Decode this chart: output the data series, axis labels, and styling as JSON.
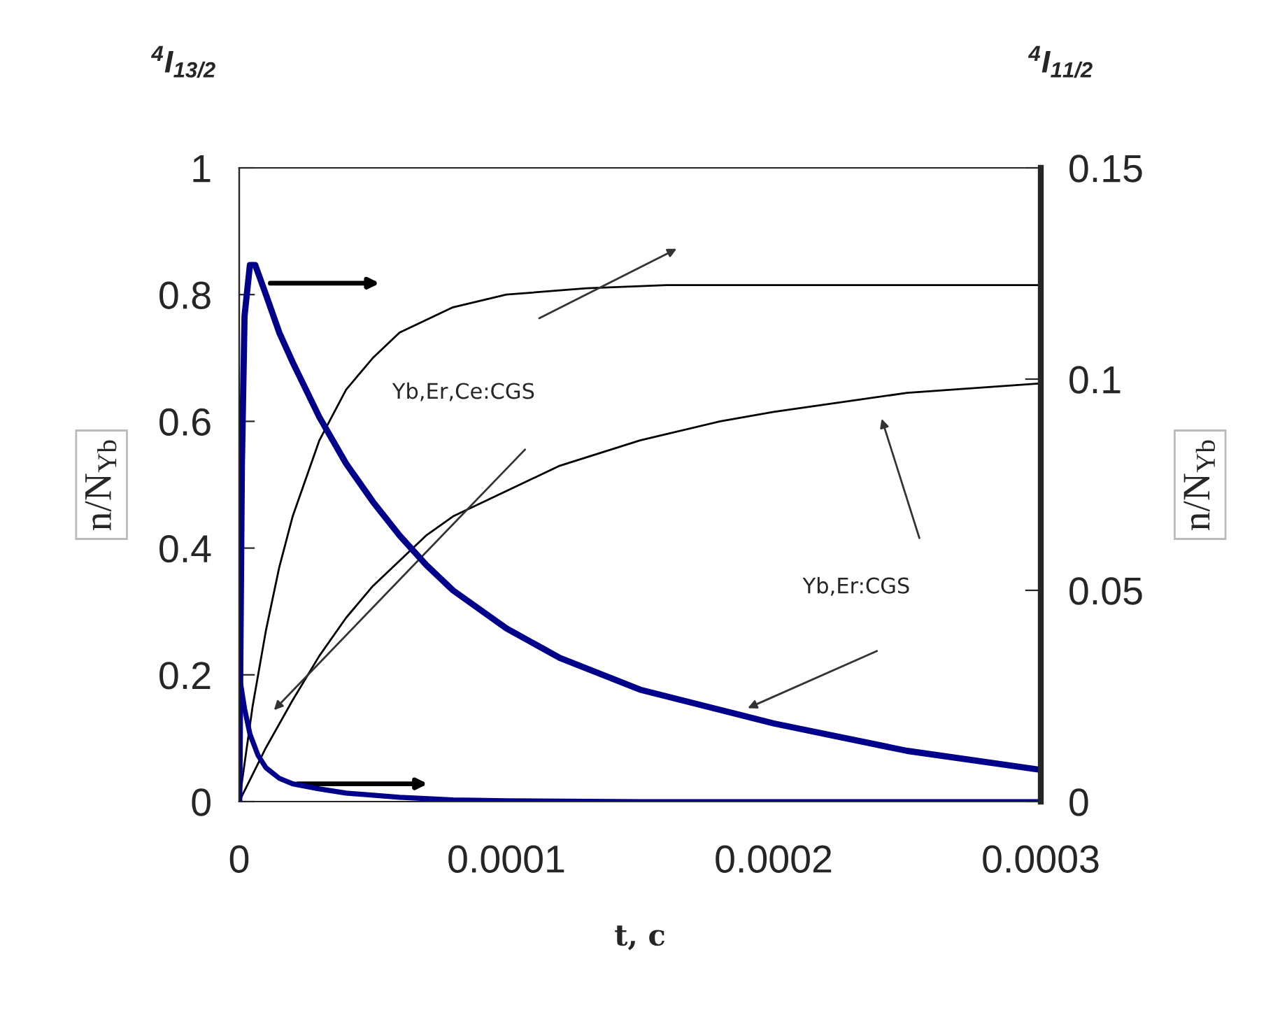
{
  "chart_data": {
    "type": "line",
    "title": "$^{4}$I$_{13/2}$",
    "subtitle": "$^{4}$I$_{11/2}$",
    "xlabel": "t, c",
    "ylabel": "n/N$_{Yb}$",
    "y2label": "n/N$_{Yb}$",
    "xlim": [
      0,
      0.0003
    ],
    "xticks": [
      0,
      0.0001,
      0.0002,
      0.0003
    ],
    "ylim": [
      0,
      1
    ],
    "yticks": [
      0,
      0.2,
      0.4,
      0.6,
      0.8,
      1
    ],
    "y2lim": [
      0,
      0.15
    ],
    "y2ticks": [
      0,
      0.05,
      0.1,
      0.15
    ],
    "grid": false,
    "marker": "none",
    "line_style": "solid",
    "annotations": [
      "Yb,Er,Ce:CGS",
      "Yb,Er:CGS"
    ],
    "series": [
      {
        "color": "#000000",
        "x": [
          0,
          5e-06,
          1e-05,
          1.5e-05,
          2e-05,
          3e-05,
          4e-05,
          5e-05,
          6e-05,
          8e-05,
          0.0001,
          0.00013,
          0.00016,
          0.0002,
          0.0003
        ],
        "values": [
          0,
          0.15,
          0.27,
          0.37,
          0.45,
          0.57,
          0.65,
          0.7,
          0.74,
          0.78,
          0.8,
          0.81,
          0.815,
          0.815,
          0.815
        ]
      },
      {
        "color": "#000000",
        "x": [
          0,
          1e-05,
          2e-05,
          3e-05,
          4e-05,
          5e-05,
          6e-05,
          7e-05,
          8e-05,
          0.0001,
          0.00012,
          0.00015,
          0.00018,
          0.0002,
          0.00025,
          0.0003
        ],
        "values": [
          0,
          0.085,
          0.16,
          0.23,
          0.29,
          0.34,
          0.38,
          0.42,
          0.45,
          0.49,
          0.53,
          0.57,
          0.6,
          0.615,
          0.645,
          0.66
        ]
      },
      {
        "color": "#00008b",
        "axis": "y2",
        "x": [
          0,
          1e-06,
          2e-06,
          4e-06,
          6e-06,
          1e-05,
          1.5e-05,
          2e-05,
          3e-05,
          4e-05,
          5e-05,
          6e-05,
          7e-05,
          8e-05,
          0.0001,
          0.00012,
          0.00015,
          0.0002,
          0.00025,
          0.0003
        ],
        "values": [
          0,
          0.08,
          0.115,
          0.127,
          0.127,
          0.12,
          0.111,
          0.104,
          0.091,
          0.08,
          0.071,
          0.063,
          0.056,
          0.05,
          0.041,
          0.034,
          0.0265,
          0.0185,
          0.012,
          0.0075
        ]
      },
      {
        "color": "#00008b",
        "axis": "y2",
        "x": [
          0,
          5e-07,
          2e-06,
          4e-06,
          7e-06,
          1e-05,
          1.5e-05,
          2e-05,
          3e-05,
          4e-05,
          6e-05,
          8e-05,
          0.0001,
          0.00015,
          0.0003
        ],
        "values": [
          0,
          0.028,
          0.022,
          0.016,
          0.011,
          0.008,
          0.0055,
          0.0042,
          0.003,
          0.002,
          0.001,
          0.0004,
          0.0002,
          0,
          0
        ]
      }
    ]
  }
}
